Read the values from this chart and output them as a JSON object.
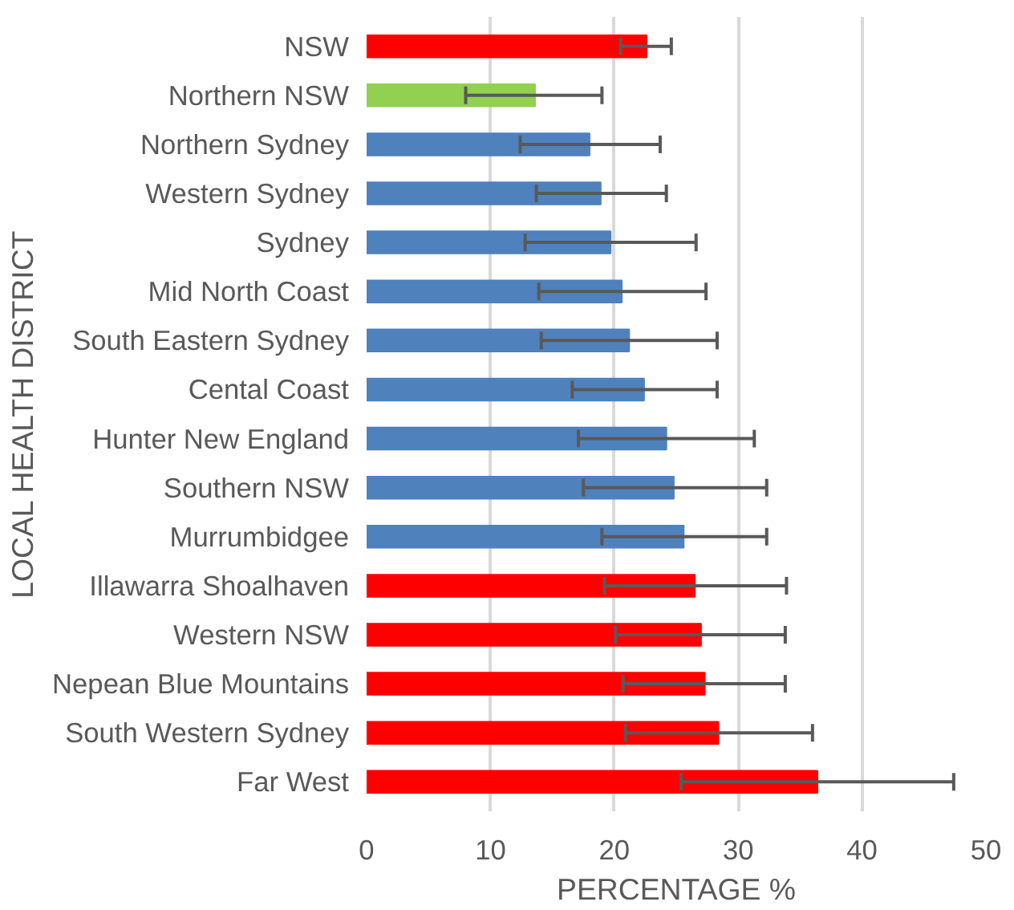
{
  "chart_data": {
    "type": "bar",
    "orientation": "horizontal",
    "xlabel": "PERCENTAGE %",
    "ylabel": "LOCAL HEALTH DISTRICT",
    "categories": [
      "NSW",
      "Northern NSW",
      "Northern Sydney",
      "Western Sydney",
      "Sydney",
      "Mid North Coast",
      "South Eastern Sydney",
      "Cental Coast",
      "Hunter New England",
      "Southern NSW",
      "Murrumbidgee",
      "Illawarra Shoalhaven",
      "Western NSW",
      "Nepean Blue Mountains",
      "South Western Sydney",
      "Far West"
    ],
    "values": [
      22.6,
      13.6,
      18.0,
      18.9,
      19.7,
      20.6,
      21.2,
      22.4,
      24.2,
      24.8,
      25.6,
      26.5,
      27.0,
      27.3,
      28.4,
      36.4
    ],
    "colors": [
      "#ff0000",
      "#92d050",
      "#4f81bd",
      "#4f81bd",
      "#4f81bd",
      "#4f81bd",
      "#4f81bd",
      "#4f81bd",
      "#4f81bd",
      "#4f81bd",
      "#4f81bd",
      "#ff0000",
      "#ff0000",
      "#ff0000",
      "#ff0000",
      "#ff0000"
    ],
    "errors": [
      [
        20.5,
        24.6
      ],
      [
        8.0,
        19.0
      ],
      [
        12.4,
        23.7
      ],
      [
        13.7,
        24.2
      ],
      [
        12.8,
        26.6
      ],
      [
        13.9,
        27.4
      ],
      [
        14.1,
        28.3
      ],
      [
        16.6,
        28.3
      ],
      [
        17.1,
        31.3
      ],
      [
        17.5,
        32.3
      ],
      [
        19.0,
        32.3
      ],
      [
        19.2,
        33.9
      ],
      [
        20.1,
        33.8
      ],
      [
        20.7,
        33.8
      ],
      [
        20.9,
        36.0
      ],
      [
        25.4,
        47.4
      ]
    ],
    "xlim": [
      0,
      50
    ],
    "xticks": [
      0,
      10,
      20,
      30,
      40,
      50
    ],
    "grid": "x"
  }
}
